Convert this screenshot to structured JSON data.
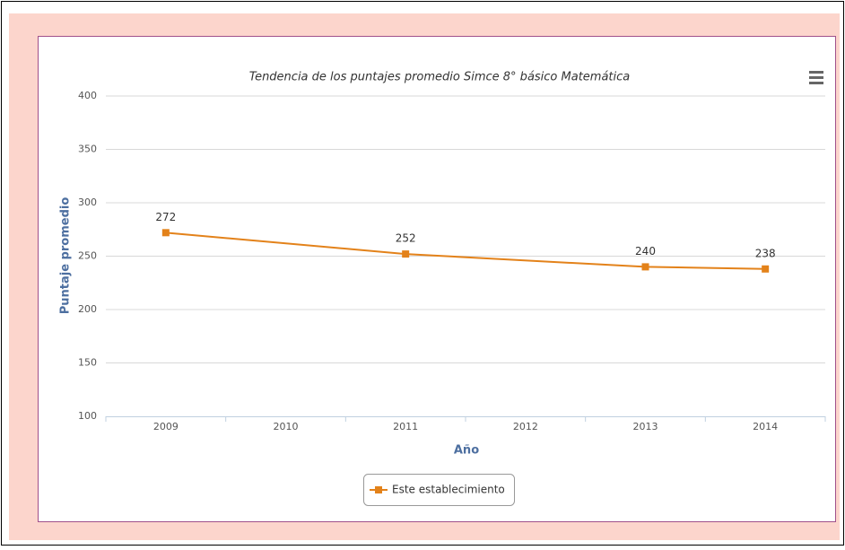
{
  "chart_data": {
    "type": "line",
    "title": "Tendencia de los puntajes promedio Simce 8° básico Matemática",
    "x_label": "Año",
    "y_label": "Puntaje promedio",
    "categories": [
      "2009",
      "2010",
      "2011",
      "2012",
      "2013",
      "2014"
    ],
    "series": [
      {
        "name": "Este establecimiento",
        "color": "#e3821a",
        "values": [
          272,
          null,
          252,
          null,
          240,
          238
        ]
      }
    ],
    "ylim": [
      100,
      400
    ],
    "yticks": [
      100,
      150,
      200,
      250,
      300,
      350,
      400
    ],
    "grid": true,
    "connect_nulls": true,
    "data_labels": true,
    "legend": "bottom"
  }
}
